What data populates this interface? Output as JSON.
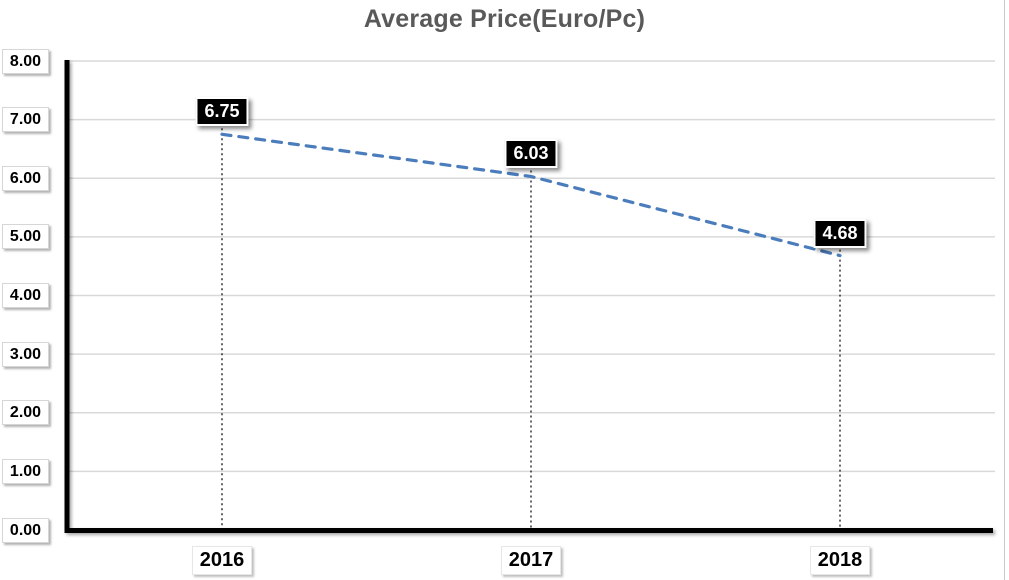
{
  "chart_data": {
    "type": "line",
    "title": "Average Price(Euro/Pc)",
    "categories": [
      "2016",
      "2017",
      "2018"
    ],
    "series": [
      {
        "name": "Average Price (Euro/Pc)",
        "values": [
          6.75,
          6.03,
          4.68
        ],
        "style": "dashed",
        "color": "#4B7DBD"
      }
    ],
    "data_labels": [
      "6.75",
      "6.03",
      "4.68"
    ],
    "y_axis": {
      "min": 0,
      "max": 8,
      "step": 1,
      "tick_labels": [
        "0.00",
        "1.00",
        "2.00",
        "3.00",
        "4.00",
        "5.00",
        "6.00",
        "7.00",
        "8.00"
      ]
    },
    "x_axis": {
      "label": ""
    },
    "ylim": [
      0,
      8
    ],
    "grid": true,
    "legend_position": "none",
    "drop_lines": true,
    "colors": {
      "series_line": "#4B7DBD",
      "title_text": "#595959",
      "gridline": "#D9D9D9",
      "axis_line": "#000000",
      "drop_line": "#000000",
      "data_label_bg": "#000000",
      "data_label_text": "#FFFFFF",
      "tick_label_bg": "#FFFFFF",
      "tick_label_text": "#000000"
    }
  }
}
